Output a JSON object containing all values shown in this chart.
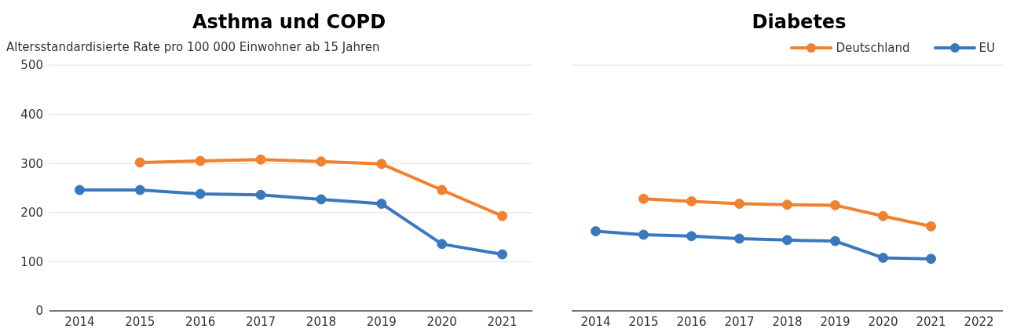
{
  "chart_data": [
    {
      "type": "line",
      "title": "Asthma und COPD",
      "subtitle": "Altersstandardisierte Rate pro 100 000 Einwohner ab 15 Jahren",
      "categories": [
        "2014",
        "2015",
        "2016",
        "2017",
        "2018",
        "2019",
        "2020",
        "2021"
      ],
      "series": [
        {
          "color": "#f0812f",
          "values": [
            null,
            302,
            305,
            308,
            304,
            299,
            246,
            193
          ]
        },
        {
          "color": "#3a78be",
          "values": [
            246,
            246,
            238,
            236,
            227,
            218,
            136,
            115
          ]
        }
      ],
      "ylim": [
        0,
        500
      ],
      "yticks": [
        0,
        100,
        200,
        300,
        400,
        500
      ],
      "grid": "y",
      "marker": "circle",
      "line_style": "solid",
      "legend": false
    },
    {
      "type": "line",
      "title": "Diabetes",
      "categories": [
        "2014",
        "2015",
        "2016",
        "2017",
        "2018",
        "2019",
        "2020",
        "2021",
        "2022"
      ],
      "series": [
        {
          "name": "Deutschland",
          "color": "#f0812f",
          "values": [
            null,
            228,
            223,
            218,
            216,
            215,
            193,
            172,
            null
          ]
        },
        {
          "name": "EU",
          "color": "#3a78be",
          "values": [
            162,
            155,
            152,
            147,
            144,
            142,
            108,
            106,
            null
          ]
        }
      ],
      "ylim": [
        0,
        500
      ],
      "yticks": [
        0,
        100,
        200,
        300,
        400,
        500
      ],
      "tick_labels": "x",
      "grid": "y",
      "marker": "circle",
      "line_style": "solid",
      "legend": "top right"
    }
  ]
}
